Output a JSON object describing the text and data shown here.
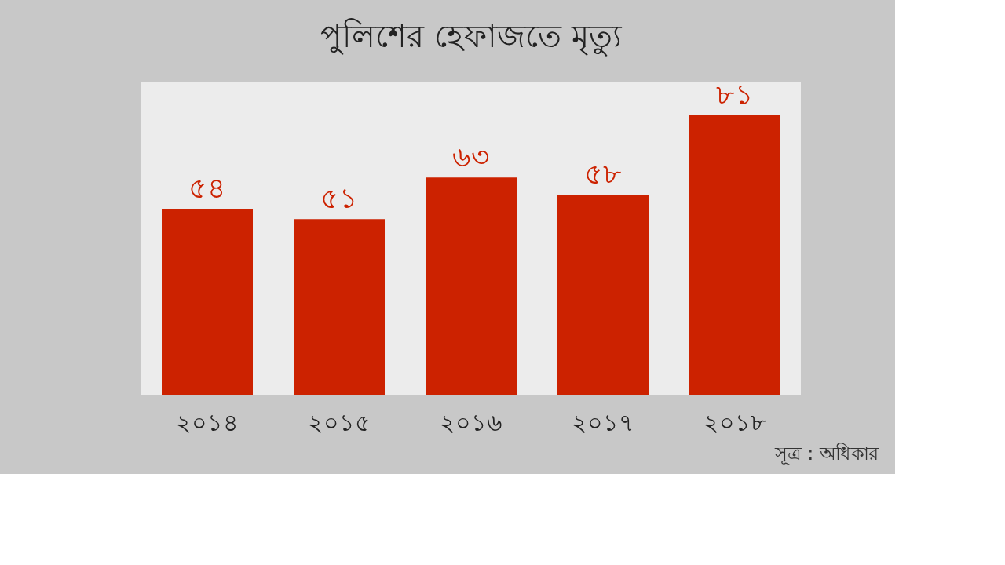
{
  "chart_data": {
    "type": "bar",
    "title": "পুলিশের হেফাজতে মৃত্যু",
    "categories": [
      "২০১৪",
      "২০১৫",
      "২০১৬",
      "২০১৭",
      "২০১৮"
    ],
    "values": [
      54,
      51,
      63,
      58,
      81
    ],
    "value_labels": [
      "৫৪",
      "৫১",
      "৬৩",
      "৫৮",
      "৮১"
    ],
    "color": "#cc2200",
    "annotations": [
      "সূত্র : অধিকার"
    ],
    "grid": false
  }
}
